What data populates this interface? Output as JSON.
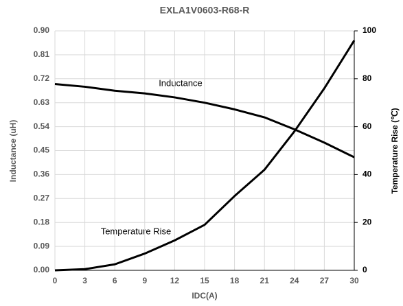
{
  "chart_data": {
    "type": "line",
    "title": "EXLA1V0603-R68-R",
    "x_label": "IDC(A)",
    "y_label": "Inductance   (uH)",
    "y2_label": "Temperature Rise (℃)",
    "x": [
      0,
      3,
      6,
      9,
      12,
      15,
      18,
      21,
      24,
      27,
      30
    ],
    "series": [
      {
        "name": "Inductance",
        "color": "#000000",
        "values": [
          0.7,
          0.69,
          0.675,
          0.665,
          0.65,
          0.63,
          0.605,
          0.575,
          0.53,
          0.48,
          0.425
        ]
      },
      {
        "name": "Temperature Rise",
        "color": "#000000",
        "axis": "y2",
        "values": [
          0,
          0.5,
          2.5,
          7,
          12.5,
          19,
          31,
          42,
          58,
          76,
          96
        ]
      }
    ],
    "xlim": [
      0,
      30
    ],
    "xticks": [
      0,
      3,
      6,
      9,
      12,
      15,
      18,
      21,
      24,
      27,
      30
    ],
    "ylim": [
      0,
      0.9
    ],
    "yticks": [
      {
        "value": 0,
        "label": "0.00"
      },
      0.09,
      0.18,
      0.27,
      0.36,
      0.45,
      0.54,
      0.63,
      0.72,
      0.81,
      {
        "value": 0.9,
        "label": "0.90"
      }
    ],
    "y2lim": [
      0,
      100
    ],
    "y2ticks": [
      0,
      20,
      40,
      60,
      80,
      100
    ],
    "grid": true
  }
}
